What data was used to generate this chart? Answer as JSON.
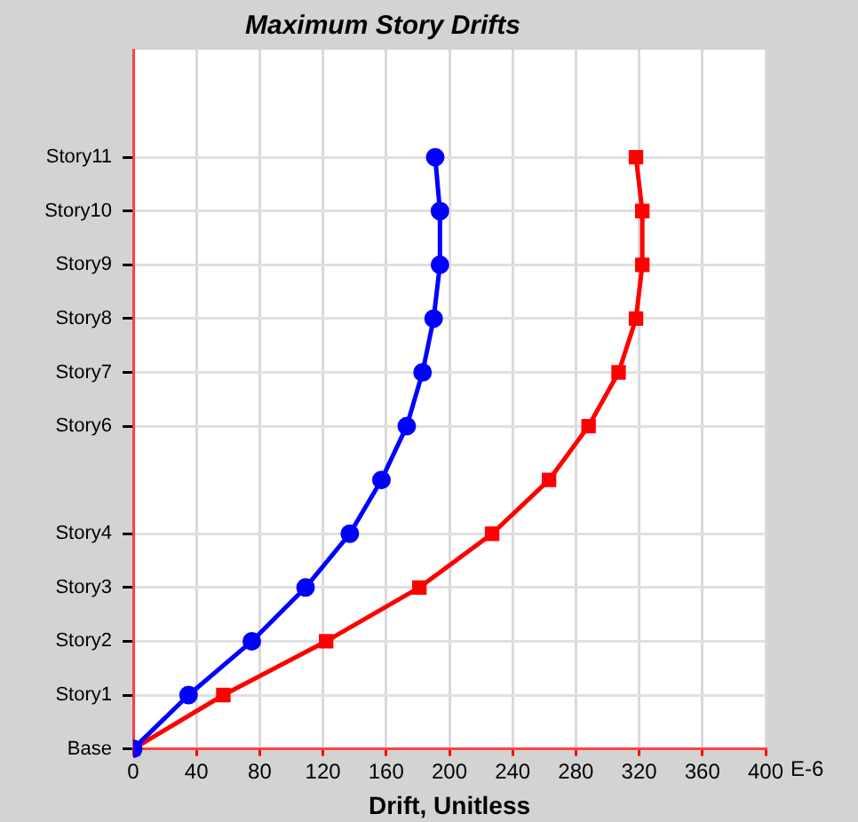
{
  "chart_data": {
    "type": "line",
    "orientation": "horizontal",
    "title": "Maximum Story Drifts",
    "xlabel": "Drift, Unitless",
    "annotations": [
      "E-6"
    ],
    "xlim": [
      0,
      400
    ],
    "xticks": [
      0,
      40,
      80,
      120,
      160,
      200,
      240,
      280,
      320,
      360,
      400
    ],
    "categories": [
      null,
      null,
      "Story11",
      "Story10",
      "Story9",
      "Story8",
      "Story7",
      "Story6",
      null,
      "Story4",
      "Story3",
      "Story2",
      "Story1",
      "Base"
    ],
    "grid": true,
    "legend": false,
    "series": [
      {
        "color": "#0000ff",
        "marker": "circle",
        "values": [
          null,
          null,
          191,
          194,
          194,
          190,
          183,
          173,
          157,
          137,
          109,
          75,
          35,
          0
        ]
      },
      {
        "color": "#ff0000",
        "marker": "square",
        "values": [
          null,
          null,
          318,
          322,
          322,
          318,
          307,
          288,
          263,
          227,
          181,
          122,
          57,
          0
        ]
      }
    ]
  }
}
